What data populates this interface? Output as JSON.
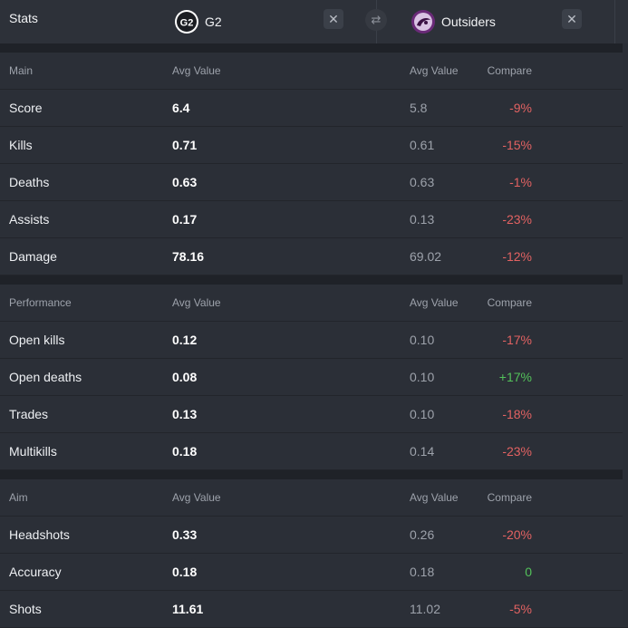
{
  "header": {
    "title": "Stats",
    "team_a": {
      "name": "G2",
      "logo": "g2-logo"
    },
    "team_b": {
      "name": "Outsiders",
      "logo": "outsiders-logo"
    },
    "close_glyph": "✕",
    "swap_glyph": "⇄"
  },
  "sections": [
    {
      "title": "Main",
      "col_a": "Avg Value",
      "col_b": "Avg Value",
      "col_compare": "Compare",
      "rows": [
        {
          "label": "Score",
          "a": "6.4",
          "b": "5.8",
          "compare": "-9%",
          "tone": "negative"
        },
        {
          "label": "Kills",
          "a": "0.71",
          "b": "0.61",
          "compare": "-15%",
          "tone": "negative"
        },
        {
          "label": "Deaths",
          "a": "0.63",
          "b": "0.63",
          "compare": "-1%",
          "tone": "negative"
        },
        {
          "label": "Assists",
          "a": "0.17",
          "b": "0.13",
          "compare": "-23%",
          "tone": "negative"
        },
        {
          "label": "Damage",
          "a": "78.16",
          "b": "69.02",
          "compare": "-12%",
          "tone": "negative"
        }
      ]
    },
    {
      "title": "Performance",
      "col_a": "Avg Value",
      "col_b": "Avg Value",
      "col_compare": "Compare",
      "rows": [
        {
          "label": "Open kills",
          "a": "0.12",
          "b": "0.10",
          "compare": "-17%",
          "tone": "negative"
        },
        {
          "label": "Open deaths",
          "a": "0.08",
          "b": "0.10",
          "compare": "+17%",
          "tone": "positive"
        },
        {
          "label": "Trades",
          "a": "0.13",
          "b": "0.10",
          "compare": "-18%",
          "tone": "negative"
        },
        {
          "label": "Multikills",
          "a": "0.18",
          "b": "0.14",
          "compare": "-23%",
          "tone": "negative"
        }
      ]
    },
    {
      "title": "Aim",
      "col_a": "Avg Value",
      "col_b": "Avg Value",
      "col_compare": "Compare",
      "rows": [
        {
          "label": "Headshots",
          "a": "0.33",
          "b": "0.26",
          "compare": "-20%",
          "tone": "negative"
        },
        {
          "label": "Accuracy",
          "a": "0.18",
          "b": "0.18",
          "compare": "0",
          "tone": "positive"
        },
        {
          "label": "Shots",
          "a": "11.61",
          "b": "11.02",
          "compare": "-5%",
          "tone": "negative"
        }
      ]
    }
  ],
  "colors": {
    "negative": "#e26262",
    "positive": "#53c15a",
    "background": "#2a2e36",
    "separator": "#1f2228"
  }
}
